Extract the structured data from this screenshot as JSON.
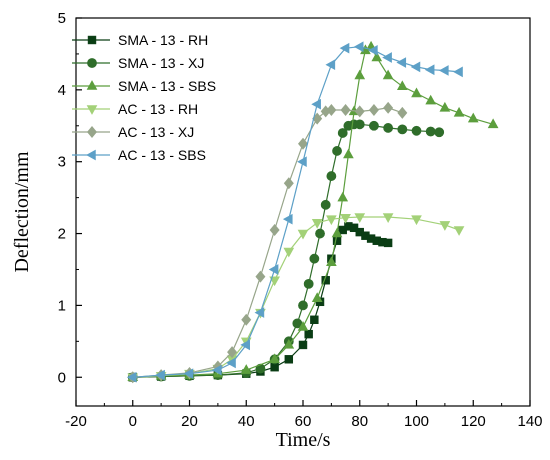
{
  "chart_data": {
    "type": "scatter",
    "xlabel": "Time/s",
    "ylabel": "Deflection/mm",
    "xlim": [
      -20,
      140
    ],
    "ylim": [
      -0.4,
      5
    ],
    "xticks": [
      -20,
      0,
      20,
      40,
      60,
      80,
      100,
      120,
      140
    ],
    "yticks": [
      0,
      1,
      2,
      3,
      4,
      5
    ],
    "x_tick_labels": [
      "-20",
      "0",
      "20",
      "40",
      "60",
      "80",
      "100",
      "120",
      "140"
    ],
    "y_tick_labels": [
      "0",
      "1",
      "2",
      "3",
      "4",
      "5"
    ],
    "legend_position": "top-left",
    "grid": false,
    "series": [
      {
        "name": "SMA - 13 - RH",
        "color": "#0a3d14",
        "marker": "square",
        "x": [
          0,
          10,
          20,
          30,
          40,
          45,
          50,
          55,
          60,
          62,
          64,
          66,
          68,
          70,
          72,
          74,
          76,
          78,
          80,
          82,
          84,
          86,
          88,
          90
        ],
        "y": [
          0,
          0.01,
          0.02,
          0.03,
          0.05,
          0.08,
          0.14,
          0.25,
          0.45,
          0.6,
          0.8,
          1.05,
          1.35,
          1.65,
          1.9,
          2.05,
          2.1,
          2.08,
          2.02,
          1.97,
          1.93,
          1.9,
          1.88,
          1.87
        ]
      },
      {
        "name": "SMA - 13 - XJ",
        "color": "#2f6d2a",
        "marker": "circle",
        "x": [
          0,
          10,
          20,
          30,
          40,
          45,
          50,
          55,
          58,
          60,
          62,
          64,
          66,
          68,
          70,
          72,
          74,
          76,
          78,
          80,
          85,
          90,
          95,
          100,
          105,
          108
        ],
        "y": [
          0,
          0.01,
          0.02,
          0.03,
          0.06,
          0.12,
          0.25,
          0.5,
          0.75,
          1.0,
          1.3,
          1.65,
          2.0,
          2.4,
          2.8,
          3.15,
          3.4,
          3.5,
          3.52,
          3.52,
          3.5,
          3.47,
          3.45,
          3.43,
          3.42,
          3.41
        ]
      },
      {
        "name": "SMA - 13 - SBS",
        "color": "#5c9e3d",
        "marker": "triangle-up",
        "x": [
          0,
          10,
          20,
          30,
          40,
          50,
          55,
          60,
          65,
          70,
          72,
          74,
          76,
          78,
          80,
          82,
          84,
          86,
          90,
          95,
          100,
          105,
          110,
          115,
          120,
          127
        ],
        "y": [
          0,
          0.02,
          0.03,
          0.05,
          0.1,
          0.25,
          0.45,
          0.7,
          1.1,
          1.6,
          2.0,
          2.5,
          3.1,
          3.7,
          4.2,
          4.55,
          4.6,
          4.45,
          4.2,
          4.05,
          3.95,
          3.85,
          3.75,
          3.68,
          3.6,
          3.52
        ]
      },
      {
        "name": "AC - 13 - RH",
        "color": "#a3d178",
        "marker": "triangle-down",
        "x": [
          0,
          10,
          20,
          30,
          35,
          40,
          45,
          50,
          55,
          60,
          65,
          70,
          75,
          80,
          90,
          100,
          110,
          115
        ],
        "y": [
          0,
          0.02,
          0.05,
          0.12,
          0.25,
          0.5,
          0.9,
          1.35,
          1.75,
          2.0,
          2.15,
          2.2,
          2.22,
          2.23,
          2.23,
          2.2,
          2.12,
          2.05
        ]
      },
      {
        "name": "AC - 13 - XJ",
        "color": "#97a58a",
        "marker": "diamond",
        "x": [
          0,
          10,
          20,
          30,
          35,
          40,
          45,
          50,
          55,
          60,
          65,
          68,
          70,
          75,
          80,
          85,
          90,
          95
        ],
        "y": [
          0,
          0.03,
          0.06,
          0.15,
          0.35,
          0.8,
          1.4,
          2.05,
          2.7,
          3.25,
          3.6,
          3.7,
          3.72,
          3.72,
          3.7,
          3.72,
          3.75,
          3.68
        ]
      },
      {
        "name": "AC - 13 - SBS",
        "color": "#5da0c7",
        "marker": "triangle-left",
        "x": [
          0,
          10,
          20,
          30,
          35,
          40,
          45,
          50,
          55,
          60,
          65,
          70,
          75,
          80,
          85,
          90,
          95,
          100,
          105,
          110,
          115
        ],
        "y": [
          0,
          0.03,
          0.05,
          0.1,
          0.2,
          0.45,
          0.9,
          1.5,
          2.2,
          3.0,
          3.8,
          4.35,
          4.58,
          4.6,
          4.55,
          4.45,
          4.38,
          4.32,
          4.28,
          4.27,
          4.25
        ]
      }
    ]
  }
}
